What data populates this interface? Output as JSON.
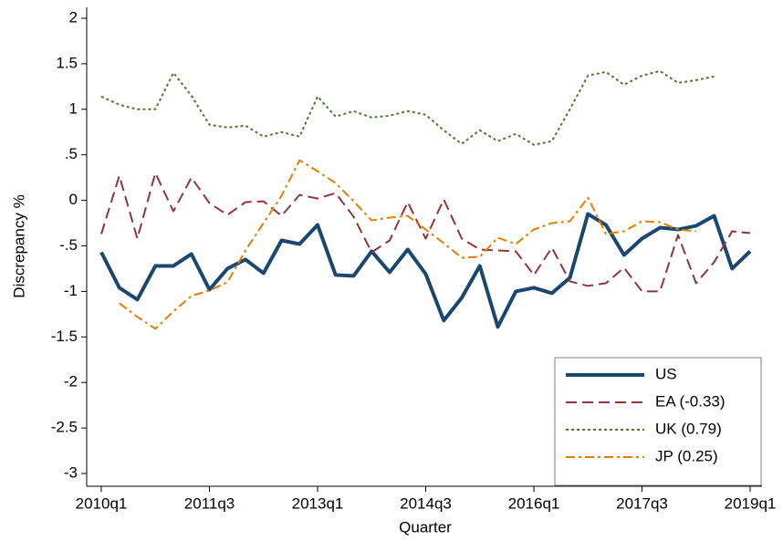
{
  "chart_data": {
    "type": "line",
    "y_label": "Discrepancy %",
    "x_label": "Quarter",
    "categories": [
      "2010q1",
      null,
      null,
      null,
      null,
      null,
      "2011q3",
      null,
      null,
      null,
      null,
      null,
      "2013q1",
      null,
      null,
      null,
      null,
      null,
      "2014q3",
      null,
      null,
      null,
      null,
      null,
      "2016q1",
      null,
      null,
      null,
      null,
      null,
      "2017q3",
      null,
      null,
      null,
      null,
      null,
      "2019q1"
    ],
    "ylim": [
      -3,
      2
    ],
    "yticks": [
      2,
      1.5,
      1,
      {
        "value": 0.5,
        "label": ".5"
      },
      0,
      {
        "value": -0.5,
        "label": "-.5"
      },
      -1,
      -1.5,
      -2,
      -2.5,
      -3
    ],
    "grid": false,
    "legend": "lower right",
    "series": [
      {
        "name": "US",
        "color": "#1a476f",
        "style": "solid",
        "width": 4,
        "values": [
          -0.57,
          -0.96,
          -1.09,
          -0.72,
          -0.72,
          -0.59,
          -0.98,
          -0.75,
          -0.65,
          -0.8,
          -0.44,
          -0.48,
          -0.27,
          -0.82,
          -0.83,
          -0.56,
          -0.79,
          -0.54,
          -0.81,
          -1.32,
          -1.07,
          -0.72,
          -1.39,
          -1.0,
          -0.96,
          -1.02,
          -0.85,
          -0.15,
          -0.27,
          -0.6,
          -0.42,
          -0.3,
          -0.32,
          -0.28,
          -0.17,
          -0.75,
          -0.56
        ]
      },
      {
        "name": "EA (-0.33)",
        "color": "#90353b",
        "style": "dashed",
        "width": 2,
        "values": [
          -0.37,
          0.27,
          -0.42,
          0.3,
          -0.12,
          0.25,
          -0.03,
          -0.16,
          -0.02,
          -0.01,
          -0.17,
          0.06,
          0.02,
          0.08,
          -0.18,
          -0.57,
          -0.44,
          -0.02,
          -0.42,
          0.01,
          -0.42,
          -0.54,
          -0.55,
          -0.56,
          -0.82,
          -0.52,
          -0.89,
          -0.94,
          -0.91,
          -0.74,
          -1.0,
          -1.0,
          -0.38,
          -0.91,
          -0.68,
          -0.34,
          -0.36
        ]
      },
      {
        "name": "UK (0.79)",
        "color": "#55752f",
        "style": "dotted",
        "width": 2,
        "values": [
          1.14,
          1.05,
          1.0,
          1.0,
          1.4,
          1.15,
          0.83,
          0.8,
          0.82,
          0.7,
          0.75,
          0.7,
          1.14,
          0.92,
          0.98,
          0.91,
          0.93,
          0.98,
          0.94,
          0.77,
          0.62,
          0.77,
          0.65,
          0.73,
          0.61,
          0.65,
          1.0,
          1.37,
          1.41,
          1.27,
          1.37,
          1.42,
          1.29,
          1.32,
          1.36,
          null,
          null
        ]
      },
      {
        "name": "JP (0.25)",
        "color": "#e37e00",
        "style": "dashdot",
        "width": 2,
        "values": [
          null,
          -1.13,
          -1.28,
          -1.41,
          -1.22,
          -1.05,
          -0.99,
          -0.9,
          -0.55,
          -0.25,
          0.05,
          0.44,
          0.32,
          0.19,
          -0.01,
          -0.22,
          -0.19,
          -0.17,
          -0.32,
          -0.47,
          -0.63,
          -0.62,
          -0.41,
          -0.48,
          -0.32,
          -0.25,
          -0.23,
          0.03,
          -0.37,
          -0.34,
          -0.23,
          -0.24,
          -0.32,
          -0.34,
          null,
          null,
          null
        ]
      }
    ]
  }
}
